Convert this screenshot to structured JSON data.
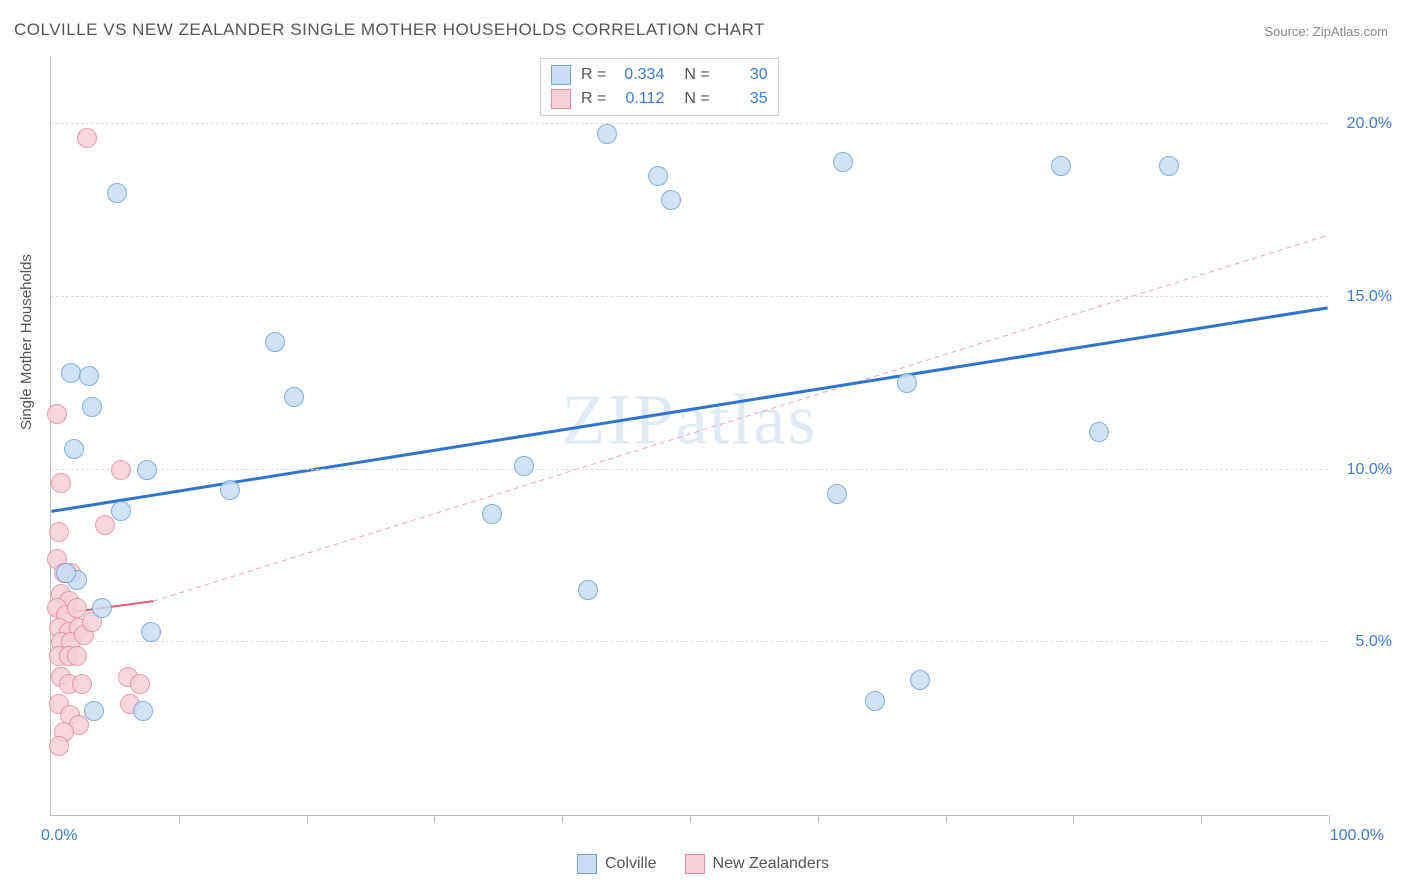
{
  "title": "COLVILLE VS NEW ZEALANDER SINGLE MOTHER HOUSEHOLDS CORRELATION CHART",
  "source": "Source: ZipAtlas.com",
  "watermark": "ZIPatlas",
  "y_axis_title": "Single Mother Households",
  "chart": {
    "type": "scatter",
    "background_color": "#ffffff",
    "grid_color": "#dddddd",
    "axis_color": "#bbbbbb",
    "xlim": [
      0,
      100
    ],
    "ylim": [
      0,
      22
    ],
    "x_ticks": [
      10,
      20,
      30,
      40,
      50,
      60,
      70,
      80,
      90,
      100
    ],
    "y_gridlines": [
      5,
      10,
      15,
      20
    ],
    "y_tick_labels": [
      "5.0%",
      "10.0%",
      "15.0%",
      "20.0%"
    ],
    "x_min_label": "0.0%",
    "x_max_label": "100.0%",
    "marker_radius": 10,
    "marker_stroke_width": 1.2,
    "series": [
      {
        "name": "Colville",
        "fill": "#c9ddf4",
        "stroke": "#6ea3db",
        "r_stat": "0.334",
        "n_stat": "30",
        "trend": {
          "x1": 0,
          "y1": 8.8,
          "x2": 100,
          "y2": 14.7,
          "color": "#2f74d0",
          "width": 3,
          "dash": "none"
        },
        "points": [
          {
            "x": 5.2,
            "y": 18.0
          },
          {
            "x": 1.6,
            "y": 12.8
          },
          {
            "x": 3.0,
            "y": 12.7
          },
          {
            "x": 3.2,
            "y": 11.8
          },
          {
            "x": 1.8,
            "y": 10.6
          },
          {
            "x": 2.0,
            "y": 6.8
          },
          {
            "x": 3.4,
            "y": 3.0
          },
          {
            "x": 7.2,
            "y": 3.0
          },
          {
            "x": 1.2,
            "y": 7.0
          },
          {
            "x": 5.5,
            "y": 8.8
          },
          {
            "x": 7.5,
            "y": 10.0
          },
          {
            "x": 4.0,
            "y": 6.0
          },
          {
            "x": 7.8,
            "y": 5.3
          },
          {
            "x": 17.5,
            "y": 13.7
          },
          {
            "x": 19.0,
            "y": 12.1
          },
          {
            "x": 14.0,
            "y": 9.4
          },
          {
            "x": 34.5,
            "y": 8.7
          },
          {
            "x": 37.0,
            "y": 10.1
          },
          {
            "x": 42.0,
            "y": 6.5
          },
          {
            "x": 43.5,
            "y": 19.7
          },
          {
            "x": 47.5,
            "y": 18.5
          },
          {
            "x": 48.5,
            "y": 17.8
          },
          {
            "x": 61.5,
            "y": 9.3
          },
          {
            "x": 64.5,
            "y": 3.3
          },
          {
            "x": 68.0,
            "y": 3.9
          },
          {
            "x": 67.0,
            "y": 12.5
          },
          {
            "x": 79.0,
            "y": 18.8
          },
          {
            "x": 82.0,
            "y": 11.1
          },
          {
            "x": 87.5,
            "y": 18.8
          },
          {
            "x": 62.0,
            "y": 18.9
          }
        ]
      },
      {
        "name": "New Zealanders",
        "fill": "#f6d0d9",
        "stroke": "#e78ca2",
        "r_stat": "0.112",
        "n_stat": "35",
        "trend_solid": {
          "x1": 0,
          "y1": 5.8,
          "x2": 8,
          "y2": 6.2,
          "color": "#e15a7a",
          "width": 2
        },
        "trend_dash": {
          "x1": 8,
          "y1": 6.2,
          "x2": 100,
          "y2": 16.8,
          "color": "#f2a3b5",
          "width": 1,
          "dash": "5,4"
        },
        "points": [
          {
            "x": 0.5,
            "y": 11.6
          },
          {
            "x": 0.8,
            "y": 9.6
          },
          {
            "x": 0.6,
            "y": 8.2
          },
          {
            "x": 0.5,
            "y": 7.4
          },
          {
            "x": 1.0,
            "y": 7.0
          },
          {
            "x": 1.6,
            "y": 7.0
          },
          {
            "x": 0.8,
            "y": 6.4
          },
          {
            "x": 1.4,
            "y": 6.2
          },
          {
            "x": 0.5,
            "y": 6.0
          },
          {
            "x": 1.2,
            "y": 5.8
          },
          {
            "x": 2.0,
            "y": 6.0
          },
          {
            "x": 0.6,
            "y": 5.4
          },
          {
            "x": 1.4,
            "y": 5.3
          },
          {
            "x": 2.2,
            "y": 5.4
          },
          {
            "x": 0.8,
            "y": 5.0
          },
          {
            "x": 1.6,
            "y": 5.0
          },
          {
            "x": 2.6,
            "y": 5.2
          },
          {
            "x": 0.6,
            "y": 4.6
          },
          {
            "x": 1.4,
            "y": 4.6
          },
          {
            "x": 2.0,
            "y": 4.6
          },
          {
            "x": 6.0,
            "y": 4.0
          },
          {
            "x": 7.0,
            "y": 3.8
          },
          {
            "x": 6.2,
            "y": 3.2
          },
          {
            "x": 0.8,
            "y": 4.0
          },
          {
            "x": 1.4,
            "y": 3.8
          },
          {
            "x": 2.4,
            "y": 3.8
          },
          {
            "x": 0.6,
            "y": 3.2
          },
          {
            "x": 1.5,
            "y": 2.9
          },
          {
            "x": 2.2,
            "y": 2.6
          },
          {
            "x": 1.0,
            "y": 2.4
          },
          {
            "x": 0.6,
            "y": 2.0
          },
          {
            "x": 4.2,
            "y": 8.4
          },
          {
            "x": 5.5,
            "y": 10.0
          },
          {
            "x": 3.2,
            "y": 5.6
          },
          {
            "x": 2.8,
            "y": 19.6
          }
        ]
      }
    ]
  },
  "legend": {
    "items": [
      {
        "label": "Colville",
        "fill": "#c9ddf4",
        "stroke": "#6ea3db"
      },
      {
        "label": "New Zealanders",
        "fill": "#f6d0d9",
        "stroke": "#e78ca2"
      }
    ]
  }
}
